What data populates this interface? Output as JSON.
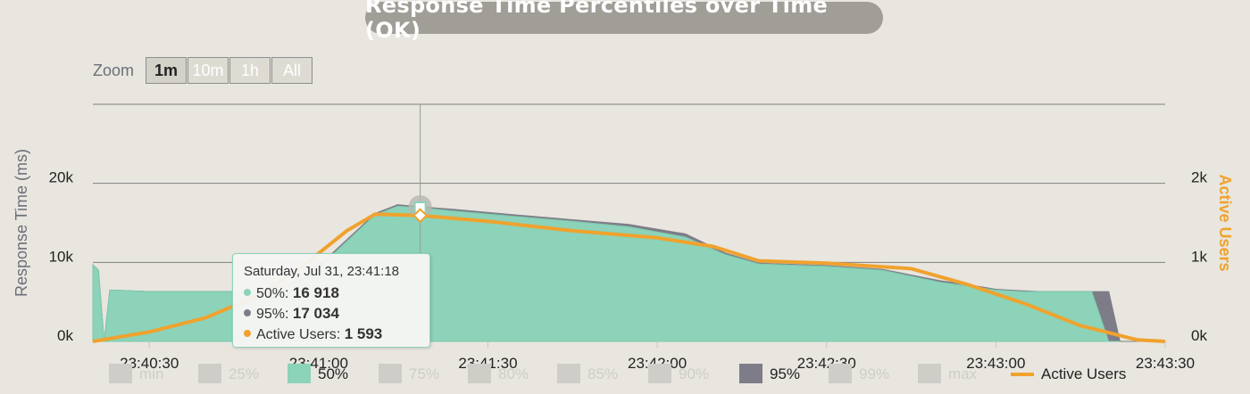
{
  "header": {
    "title": "Response Time Percentiles over Time (OK)"
  },
  "zoom": {
    "label": "Zoom",
    "buttons": [
      {
        "label": "1m",
        "active": true
      },
      {
        "label": "10m",
        "active": false
      },
      {
        "label": "1h",
        "active": false
      },
      {
        "label": "All",
        "active": false
      }
    ]
  },
  "tooltip": {
    "header": "Saturday, Jul 31, 23:41:18",
    "rows": [
      {
        "label": "50%: ",
        "value": "16 918",
        "color": "#8cd3b9"
      },
      {
        "label": "95%: ",
        "value": "17 034",
        "color": "#7f7c89"
      },
      {
        "label": "Active Users: ",
        "value": "1 593",
        "color": "#f0a22e"
      }
    ]
  },
  "legend": [
    {
      "label": "min",
      "color": "#cfcdc8",
      "enabled": false
    },
    {
      "label": "25%",
      "color": "#cfcdc8",
      "enabled": false
    },
    {
      "label": "50%",
      "color": "#8cd3b9",
      "enabled": true
    },
    {
      "label": "75%",
      "color": "#cfcdc8",
      "enabled": false
    },
    {
      "label": "80%",
      "color": "#cfcdc8",
      "enabled": false
    },
    {
      "label": "85%",
      "color": "#cfcdc8",
      "enabled": false
    },
    {
      "label": "90%",
      "color": "#cfcdc8",
      "enabled": false
    },
    {
      "label": "95%",
      "color": "#7f7c89",
      "enabled": true
    },
    {
      "label": "99%",
      "color": "#cfcdc8",
      "enabled": false
    },
    {
      "label": "max",
      "color": "#cfcdc8",
      "enabled": false
    },
    {
      "label": "Active Users",
      "color": "#f0a22e",
      "enabled": true,
      "line": true
    }
  ],
  "colors": {
    "p50": "#8cd3b9",
    "p95": "#7f7c89",
    "active_users": "#f0a22e",
    "disabled_text": "#cfcdc8",
    "grid": "#7f7f7f",
    "axis_text": "#6b6f78"
  },
  "chart_data": {
    "type": "area",
    "title": "Response Time Percentiles over Time (OK)",
    "ylabel": "Response Time (ms)",
    "y2label": "Active Users",
    "ylim": [
      0,
      30000
    ],
    "y2lim": [
      0,
      3000
    ],
    "yticks": [
      0,
      10000,
      20000
    ],
    "ytick_labels": [
      "0k",
      "10k",
      "20k"
    ],
    "y2ticks": [
      0,
      1000,
      2000
    ],
    "y2tick_labels": [
      "0k",
      "1k",
      "2k"
    ],
    "xlim": [
      "23:40:20",
      "23:43:30"
    ],
    "xticks": [
      "23:40:30",
      "23:41:00",
      "23:41:30",
      "23:42:00",
      "23:42:30",
      "23:43:00",
      "23:43:30"
    ],
    "grid": true,
    "legend_position": "bottom",
    "series": [
      {
        "name": "50%",
        "axis": "left",
        "x": [
          "23:40:20",
          "23:40:21",
          "23:40:22",
          "23:40:23",
          "23:40:30",
          "23:40:40",
          "23:40:45",
          "23:40:52",
          "23:40:58",
          "23:41:04",
          "23:41:10",
          "23:41:14",
          "23:41:18",
          "23:41:24",
          "23:41:35",
          "23:41:45",
          "23:41:55",
          "23:42:05",
          "23:42:12",
          "23:42:18",
          "23:42:30",
          "23:42:40",
          "23:42:50",
          "23:42:55",
          "23:43:00",
          "23:43:05",
          "23:43:08",
          "23:43:10",
          "23:43:14",
          "23:43:17",
          "23:43:20",
          "23:43:22"
        ],
        "values": [
          9700,
          9000,
          0,
          6500,
          6300,
          6300,
          6300,
          6300,
          8000,
          12000,
          16000,
          17100,
          16918,
          16500,
          15800,
          15200,
          14500,
          13200,
          11000,
          9800,
          9500,
          9000,
          7500,
          7000,
          6500,
          6300,
          6300,
          6300,
          6300,
          6300,
          0,
          0
        ]
      },
      {
        "name": "95%",
        "axis": "left",
        "x": [
          "23:40:20",
          "23:40:21",
          "23:40:22",
          "23:40:23",
          "23:40:30",
          "23:40:40",
          "23:40:45",
          "23:40:52",
          "23:40:58",
          "23:41:04",
          "23:41:10",
          "23:41:14",
          "23:41:18",
          "23:41:24",
          "23:41:35",
          "23:41:45",
          "23:41:55",
          "23:42:05",
          "23:42:12",
          "23:42:18",
          "23:42:30",
          "23:42:40",
          "23:42:50",
          "23:42:55",
          "23:43:00",
          "23:43:05",
          "23:43:08",
          "23:43:10",
          "23:43:14",
          "23:43:17",
          "23:43:20",
          "23:43:22"
        ],
        "values": [
          9700,
          9000,
          0,
          6500,
          6300,
          6300,
          6300,
          6300,
          8200,
          12200,
          16200,
          17300,
          17034,
          16700,
          16000,
          15400,
          14800,
          13600,
          11200,
          9900,
          9600,
          9100,
          7700,
          7200,
          6600,
          6400,
          6300,
          6300,
          6300,
          6300,
          6300,
          0
        ]
      },
      {
        "name": "Active Users",
        "axis": "right",
        "x": [
          "23:40:20",
          "23:40:30",
          "23:40:40",
          "23:40:50",
          "23:40:58",
          "23:41:05",
          "23:41:10",
          "23:41:18",
          "23:41:30",
          "23:41:45",
          "23:42:00",
          "23:42:10",
          "23:42:18",
          "23:42:30",
          "23:42:45",
          "23:42:55",
          "23:43:05",
          "23:43:15",
          "23:43:25",
          "23:43:30"
        ],
        "values": [
          0,
          120,
          300,
          600,
          1000,
          1400,
          1610,
          1593,
          1520,
          1400,
          1310,
          1200,
          1020,
          990,
          920,
          720,
          480,
          200,
          20,
          0
        ]
      }
    ]
  }
}
